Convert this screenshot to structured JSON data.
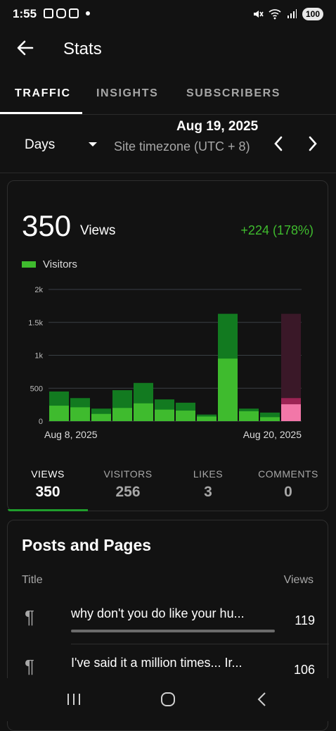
{
  "status_bar": {
    "time": "1:55",
    "battery": "100",
    "icons": [
      "screenshot-icon",
      "instagram-icon",
      "calendar-icon",
      "dot-icon",
      "mute-icon",
      "wifi-icon",
      "signal-icon"
    ]
  },
  "header": {
    "title": "Stats"
  },
  "tabs": [
    {
      "label": "TRAFFIC",
      "active": true
    },
    {
      "label": "INSIGHTS",
      "active": false
    },
    {
      "label": "SUBSCRIBERS",
      "active": false
    }
  ],
  "date_row": {
    "period": "Days",
    "date": "Aug 19, 2025",
    "timezone": "Site timezone (UTC + 8)"
  },
  "summary": {
    "value": "350",
    "label": "Views",
    "delta": "+224 (178%)",
    "legend": "Visitors"
  },
  "chart_data": {
    "type": "bar",
    "series": [
      {
        "name": "Views",
        "values": [
          450,
          350,
          190,
          470,
          580,
          330,
          280,
          100,
          1630,
          190,
          130,
          350
        ]
      },
      {
        "name": "Visitors",
        "values": [
          235,
          210,
          110,
          200,
          270,
          175,
          160,
          70,
          950,
          150,
          60,
          256
        ]
      }
    ],
    "highlight_index": 11,
    "y_ticks": [
      "0",
      "500",
      "1k",
      "1.5k",
      "2k"
    ],
    "ylim": [
      0,
      2000
    ],
    "x_start_label": "Aug 8, 2025",
    "x_end_label": "Aug 20, 2025",
    "colors": {
      "views": "#127a20",
      "visitors": "#3fbb2e",
      "highlight_views": "#9c2454",
      "highlight_visitors": "#f277a8",
      "highlight_bg": "#3a1828",
      "grid": "#3a3f45"
    }
  },
  "metrics": [
    {
      "label": "VIEWS",
      "value": "350",
      "active": true
    },
    {
      "label": "VISITORS",
      "value": "256",
      "active": false
    },
    {
      "label": "LIKES",
      "value": "3",
      "active": false
    },
    {
      "label": "COMMENTS",
      "value": "0",
      "active": false
    }
  ],
  "posts": {
    "title": "Posts and Pages",
    "col_title": "Title",
    "col_views": "Views",
    "items": [
      {
        "title": "why don't you do like your hu...",
        "views": "119",
        "bar": 1.0
      },
      {
        "title": "I've said it a million times... Ir...",
        "views": "106",
        "bar": 0.89
      }
    ]
  }
}
